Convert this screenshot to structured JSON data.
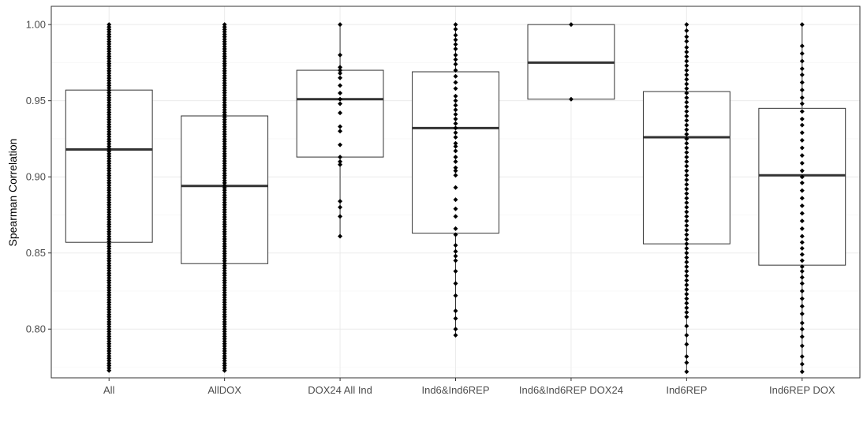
{
  "chart_data": {
    "type": "box",
    "title": "",
    "xlabel": "",
    "ylabel": "Spearman Correlation",
    "ylim": [
      0.768,
      1.012
    ],
    "yticks": [
      0.8,
      0.85,
      0.9,
      0.95,
      1.0
    ],
    "ytick_labels": [
      "0.80",
      "0.85",
      "0.90",
      "0.95",
      "1.00"
    ],
    "grid": true,
    "legend": "none",
    "theme_colors": {
      "panel_border": "#333333",
      "grid_major": "#ebebeb",
      "grid_minor": "#f5f5f5",
      "box_line": "#333333",
      "median_line": "#333333",
      "point": "#000000"
    },
    "categories": [
      "All",
      "AllDOX",
      "DOX24 All Ind",
      "Ind6&Ind6REP",
      "Ind6&Ind6REP DOX24",
      "Ind6REP",
      "Ind6REP DOX"
    ],
    "boxes": [
      {
        "category": "All",
        "min": 0.772,
        "q1": 0.857,
        "median": 0.918,
        "q3": 0.957,
        "max": 1.0,
        "dense": true
      },
      {
        "category": "AllDOX",
        "min": 0.772,
        "q1": 0.843,
        "median": 0.894,
        "q3": 0.94,
        "max": 1.0,
        "dense": true
      },
      {
        "category": "DOX24 All Ind",
        "min": 0.861,
        "q1": 0.913,
        "median": 0.951,
        "q3": 0.97,
        "max": 1.0,
        "points": [
          1.0,
          0.98,
          0.972,
          0.97,
          0.968,
          0.965,
          0.96,
          0.955,
          0.951,
          0.948,
          0.942,
          0.933,
          0.93,
          0.921,
          0.913,
          0.91,
          0.908,
          0.884,
          0.88,
          0.874,
          0.861
        ]
      },
      {
        "category": "Ind6&Ind6REP",
        "min": 0.796,
        "q1": 0.863,
        "median": 0.932,
        "q3": 0.969,
        "max": 1.0,
        "points": [
          1.0,
          0.997,
          0.993,
          0.99,
          0.987,
          0.984,
          0.98,
          0.977,
          0.974,
          0.97,
          0.966,
          0.962,
          0.958,
          0.953,
          0.95,
          0.947,
          0.944,
          0.941,
          0.938,
          0.935,
          0.932,
          0.929,
          0.926,
          0.922,
          0.92,
          0.917,
          0.913,
          0.91,
          0.906,
          0.904,
          0.901,
          0.893,
          0.885,
          0.879,
          0.874,
          0.866,
          0.862,
          0.855,
          0.851,
          0.848,
          0.845,
          0.838,
          0.83,
          0.822,
          0.812,
          0.807,
          0.8,
          0.796
        ]
      },
      {
        "category": "Ind6&Ind6REP DOX24",
        "min": 0.951,
        "q1": 0.951,
        "median": 0.975,
        "q3": 1.0,
        "max": 1.0,
        "points": [
          1.0,
          0.951
        ]
      },
      {
        "category": "Ind6REP",
        "min": 0.772,
        "q1": 0.856,
        "median": 0.926,
        "q3": 0.956,
        "max": 1.0,
        "points": [
          1.0,
          0.996,
          0.992,
          0.989,
          0.985,
          0.982,
          0.979,
          0.976,
          0.973,
          0.97,
          0.967,
          0.964,
          0.961,
          0.958,
          0.955,
          0.952,
          0.949,
          0.946,
          0.943,
          0.94,
          0.937,
          0.934,
          0.931,
          0.928,
          0.925,
          0.922,
          0.919,
          0.916,
          0.913,
          0.91,
          0.907,
          0.904,
          0.901,
          0.898,
          0.895,
          0.892,
          0.889,
          0.886,
          0.883,
          0.88,
          0.877,
          0.874,
          0.871,
          0.868,
          0.865,
          0.862,
          0.859,
          0.856,
          0.853,
          0.85,
          0.847,
          0.844,
          0.841,
          0.838,
          0.835,
          0.832,
          0.829,
          0.826,
          0.823,
          0.82,
          0.817,
          0.814,
          0.811,
          0.808,
          0.802,
          0.796,
          0.79,
          0.782,
          0.778,
          0.772
        ]
      },
      {
        "category": "Ind6REP DOX",
        "min": 0.772,
        "q1": 0.842,
        "median": 0.901,
        "q3": 0.945,
        "max": 1.0,
        "points": [
          1.0,
          0.986,
          0.981,
          0.976,
          0.971,
          0.967,
          0.962,
          0.957,
          0.952,
          0.948,
          0.943,
          0.938,
          0.934,
          0.929,
          0.924,
          0.919,
          0.914,
          0.909,
          0.904,
          0.9,
          0.896,
          0.891,
          0.886,
          0.881,
          0.876,
          0.871,
          0.866,
          0.861,
          0.857,
          0.853,
          0.849,
          0.845,
          0.841,
          0.838,
          0.834,
          0.83,
          0.825,
          0.82,
          0.815,
          0.81,
          0.804,
          0.8,
          0.795,
          0.789,
          0.782,
          0.777,
          0.772
        ]
      }
    ]
  }
}
